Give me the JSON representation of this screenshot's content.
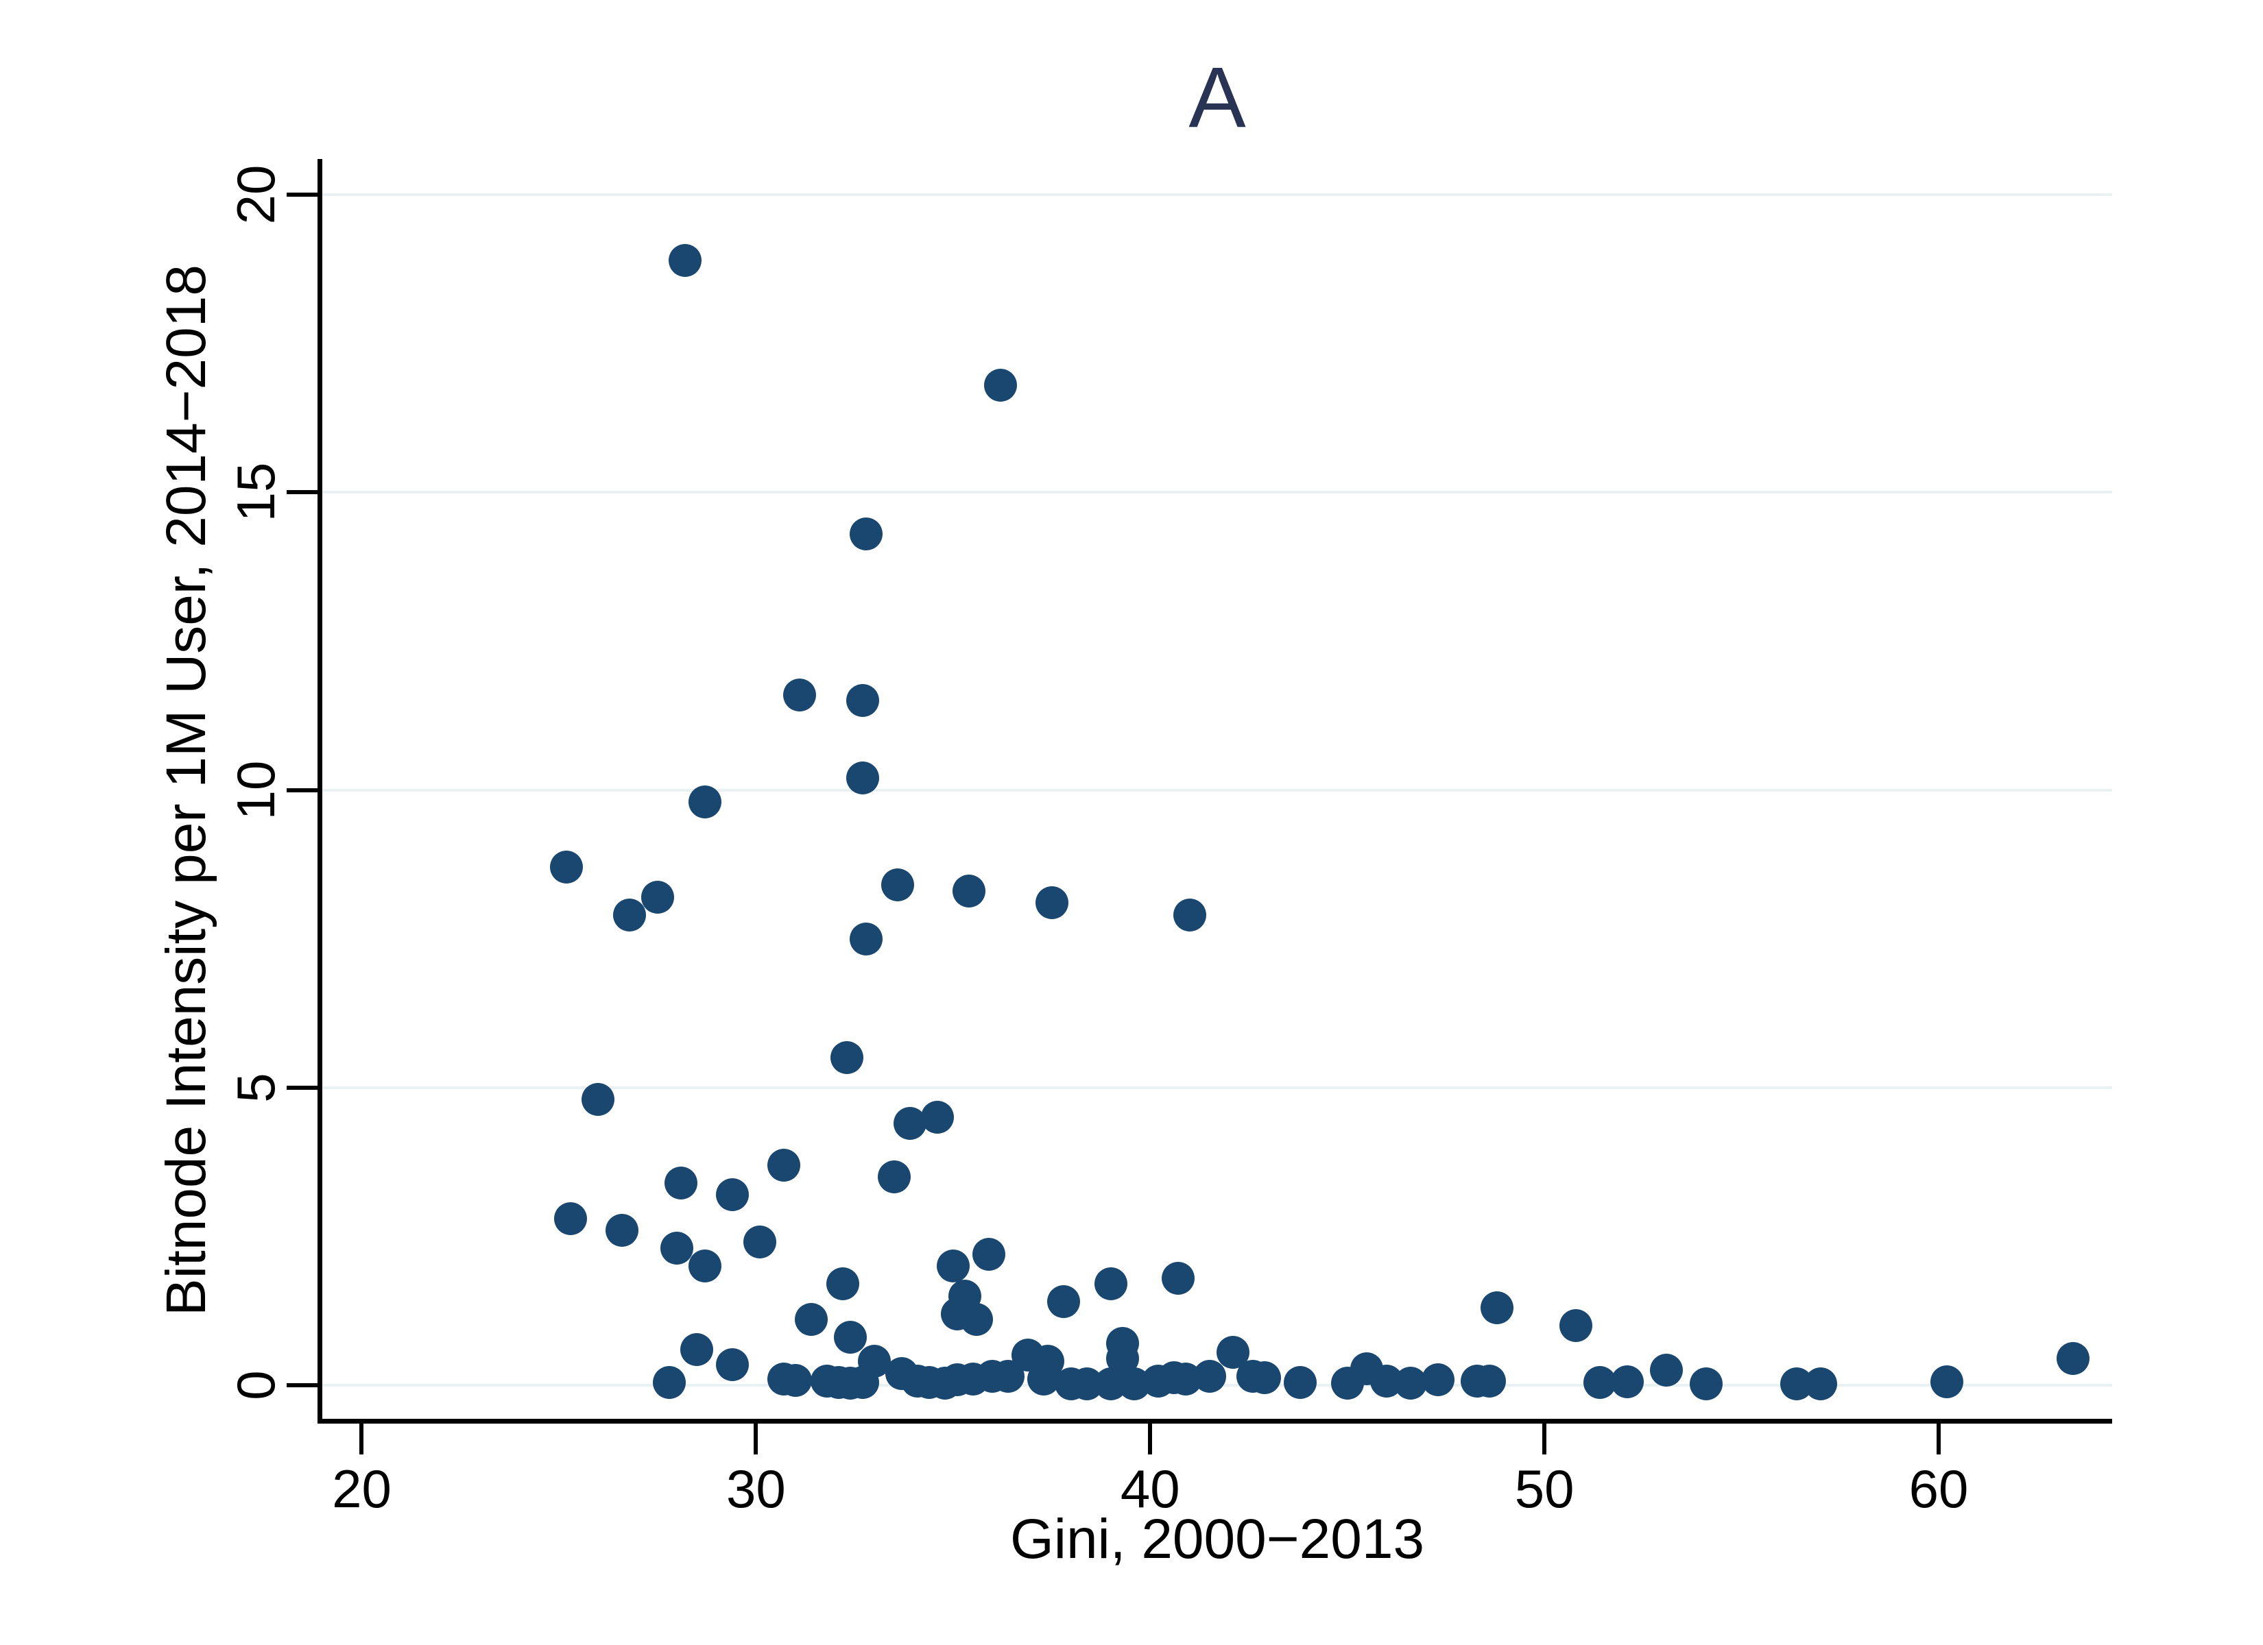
{
  "title": "A",
  "title_color": "#293454",
  "chart_data": {
    "type": "scatter",
    "title": "A",
    "xlabel": "Gini, 2000−2013",
    "ylabel": "Bitnode Intensity per 1M User, 2014−2018",
    "x_ticks": [
      20,
      30,
      40,
      50,
      60
    ],
    "y_ticks": [
      0,
      5,
      10,
      15,
      20
    ],
    "x_window": [
      19.0,
      64.4
    ],
    "y_window": [
      -0.6,
      20.6
    ],
    "grid": "horizontal-only",
    "legend": "none",
    "marker_color": "#1a476f",
    "gridline_color": "#e9f1f3",
    "points": [
      [
        28.2,
        18.9
      ],
      [
        36.2,
        16.8
      ],
      [
        32.8,
        14.3
      ],
      [
        31.1,
        11.6
      ],
      [
        32.7,
        11.5
      ],
      [
        32.7,
        10.2
      ],
      [
        28.7,
        9.8
      ],
      [
        25.2,
        8.7
      ],
      [
        27.5,
        8.2
      ],
      [
        26.8,
        7.9
      ],
      [
        33.6,
        8.4
      ],
      [
        35.4,
        8.3
      ],
      [
        37.5,
        8.1
      ],
      [
        41.0,
        7.9
      ],
      [
        32.8,
        7.5
      ],
      [
        32.3,
        5.5
      ],
      [
        26.0,
        4.8
      ],
      [
        33.9,
        4.4
      ],
      [
        34.6,
        4.5
      ],
      [
        33.5,
        3.5
      ],
      [
        30.7,
        3.7
      ],
      [
        28.1,
        3.4
      ],
      [
        29.4,
        3.2
      ],
      [
        25.3,
        2.8
      ],
      [
        26.6,
        2.6
      ],
      [
        28.0,
        2.3
      ],
      [
        28.7,
        2.0
      ],
      [
        30.1,
        2.4
      ],
      [
        32.2,
        1.7
      ],
      [
        35.0,
        2.0
      ],
      [
        35.9,
        2.2
      ],
      [
        35.3,
        1.5
      ],
      [
        39.0,
        1.7
      ],
      [
        40.7,
        1.8
      ],
      [
        35.1,
        1.2
      ],
      [
        35.6,
        1.1
      ],
      [
        37.8,
        1.4
      ],
      [
        48.8,
        1.3
      ],
      [
        50.8,
        1.0
      ],
      [
        31.4,
        1.1
      ],
      [
        32.4,
        0.8
      ],
      [
        36.9,
        0.5
      ],
      [
        37.4,
        0.4
      ],
      [
        39.3,
        0.7
      ],
      [
        39.3,
        0.45
      ],
      [
        28.5,
        0.6
      ],
      [
        29.4,
        0.35
      ],
      [
        33.0,
        0.4
      ],
      [
        42.1,
        0.55
      ],
      [
        63.4,
        0.45
      ],
      [
        27.8,
        0.05
      ],
      [
        30.7,
        0.1
      ],
      [
        31.0,
        0.08
      ],
      [
        31.8,
        0.07
      ],
      [
        32.1,
        0.05
      ],
      [
        32.4,
        0.03
      ],
      [
        32.7,
        0.05
      ],
      [
        33.7,
        0.2
      ],
      [
        34.1,
        0.07
      ],
      [
        34.4,
        0.05
      ],
      [
        34.8,
        0.03
      ],
      [
        35.1,
        0.09
      ],
      [
        35.5,
        0.1
      ],
      [
        36.0,
        0.15
      ],
      [
        36.4,
        0.15
      ],
      [
        37.3,
        0.1
      ],
      [
        38.0,
        0.02
      ],
      [
        38.4,
        0.02
      ],
      [
        39.0,
        0.02
      ],
      [
        39.6,
        0.02
      ],
      [
        40.2,
        0.07
      ],
      [
        40.6,
        0.13
      ],
      [
        40.9,
        0.1
      ],
      [
        41.5,
        0.15
      ],
      [
        42.6,
        0.15
      ],
      [
        42.9,
        0.13
      ],
      [
        43.8,
        0.05
      ],
      [
        45.0,
        0.03
      ],
      [
        45.5,
        0.28
      ],
      [
        46.0,
        0.07
      ],
      [
        46.6,
        0.03
      ],
      [
        47.3,
        0.09
      ],
      [
        48.3,
        0.07
      ],
      [
        48.6,
        0.07
      ],
      [
        51.4,
        0.05
      ],
      [
        52.1,
        0.06
      ],
      [
        53.1,
        0.25
      ],
      [
        54.1,
        0.02
      ],
      [
        56.4,
        0.02
      ],
      [
        57.0,
        0.02
      ],
      [
        60.2,
        0.06
      ]
    ]
  }
}
